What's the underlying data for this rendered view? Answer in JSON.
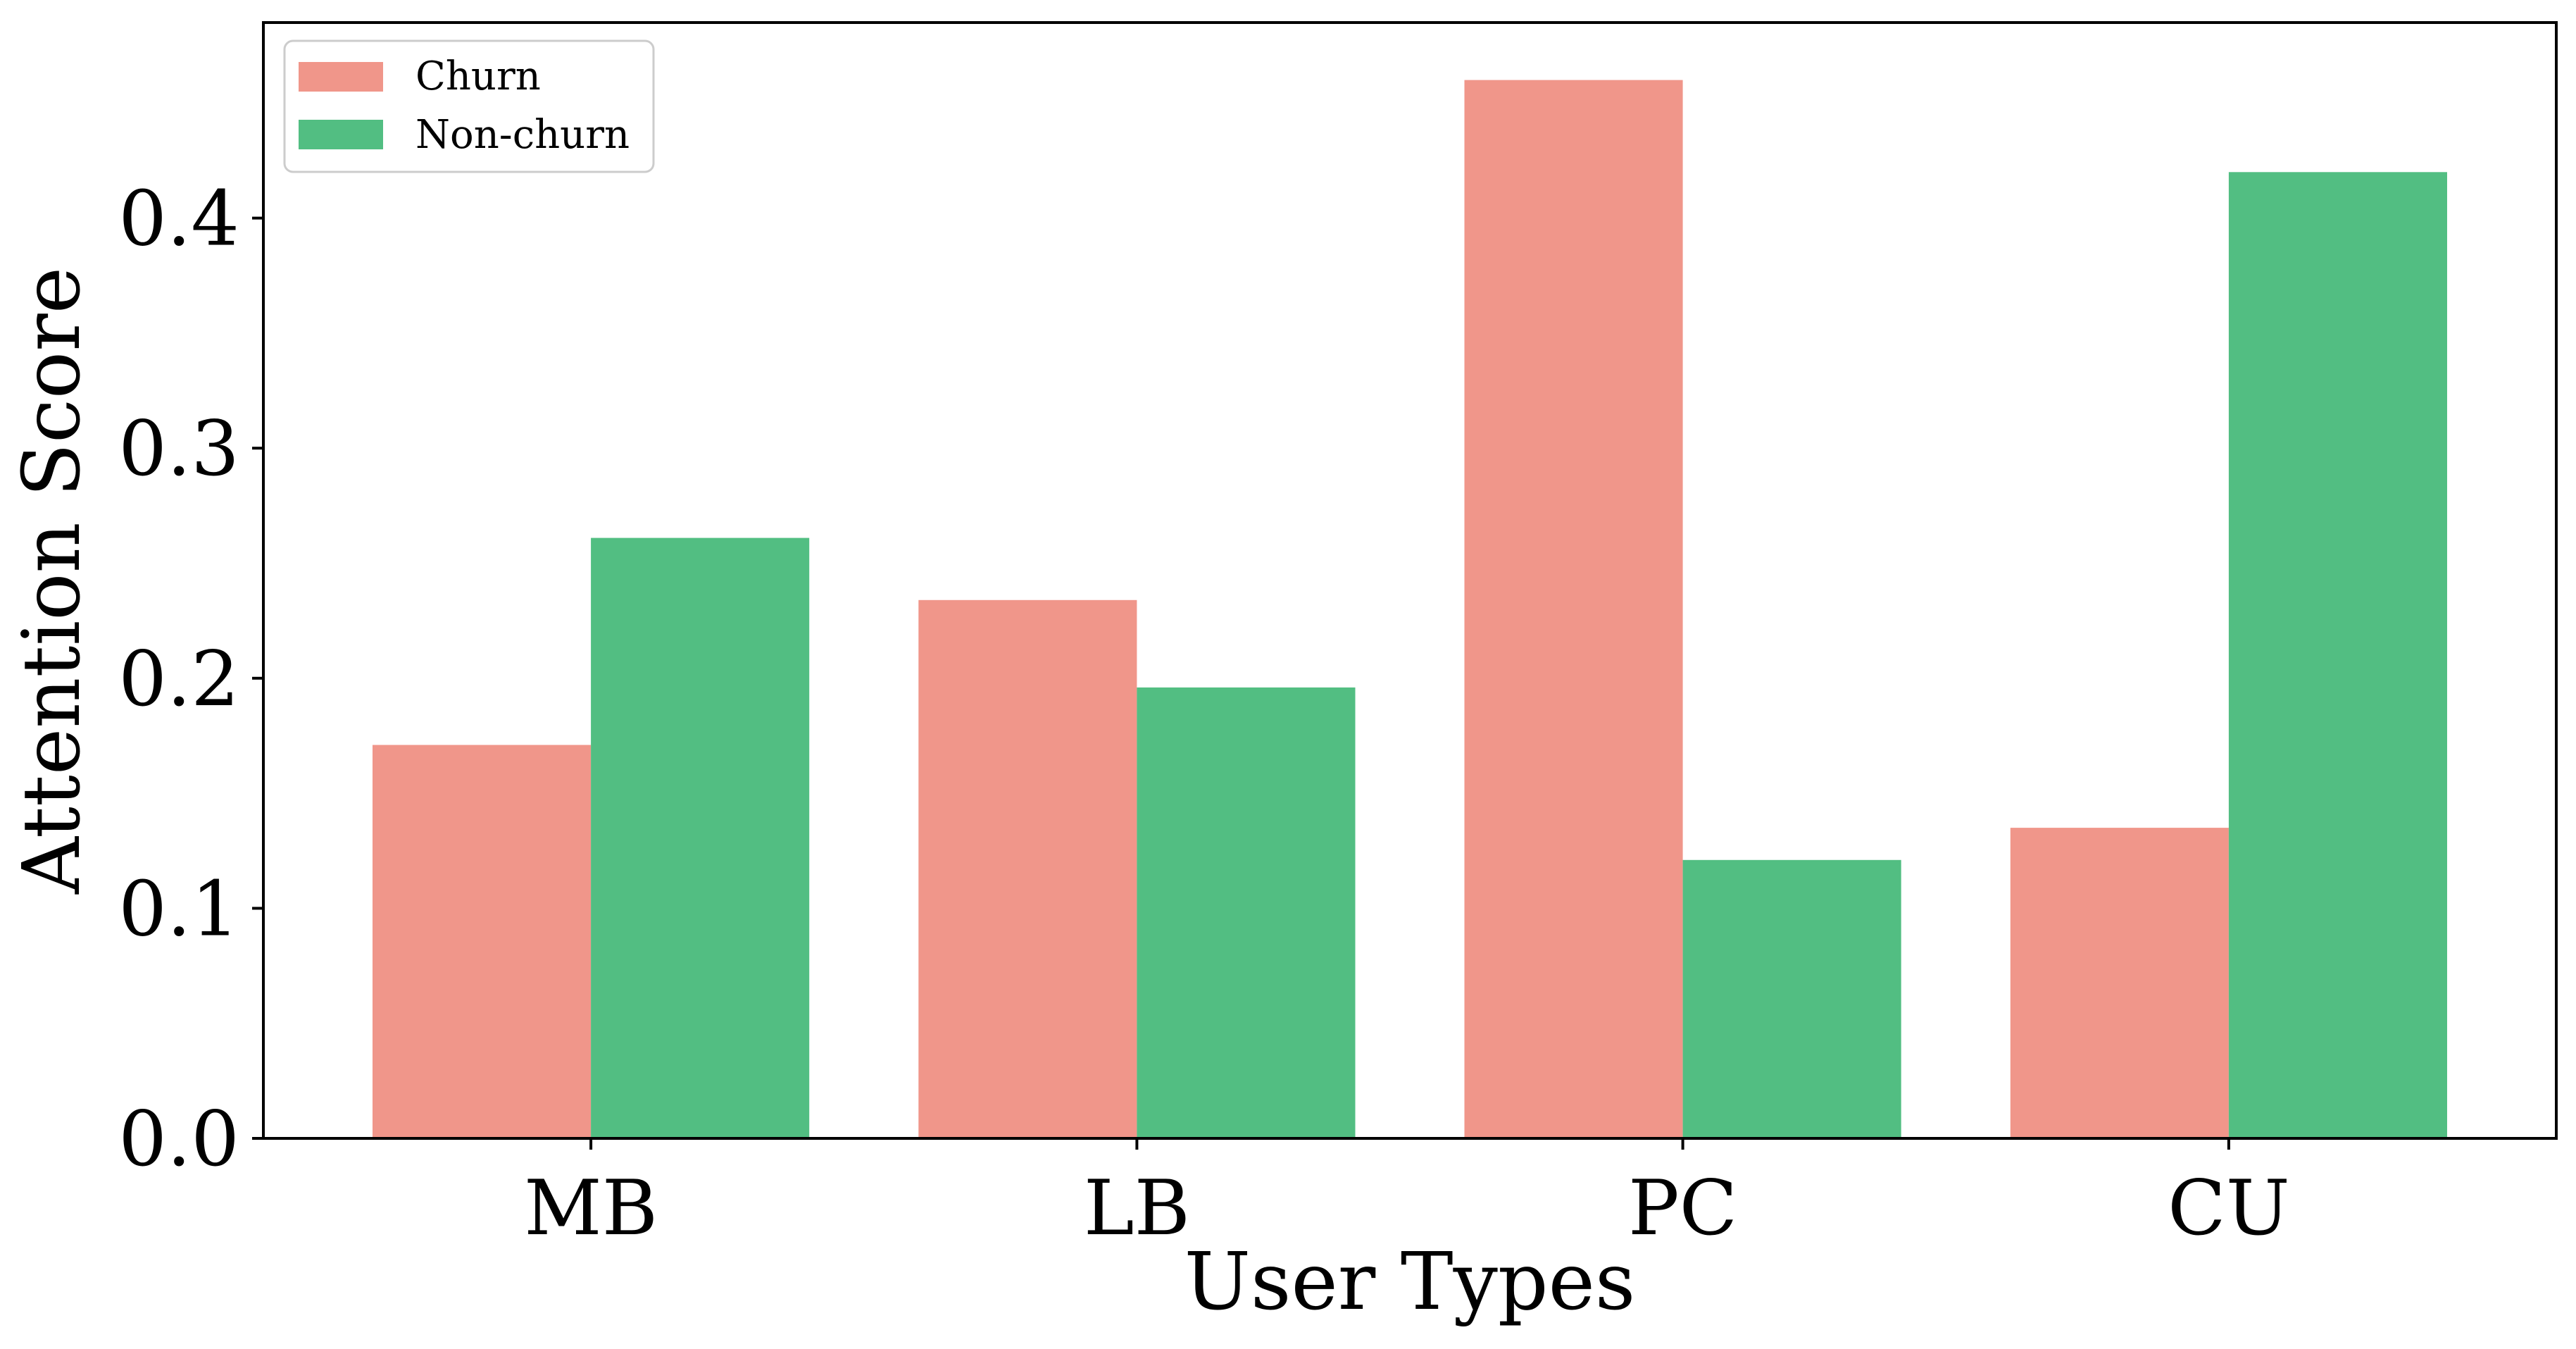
{
  "chart_data": {
    "type": "bar",
    "categories": [
      "MB",
      "LB",
      "PC",
      "CU"
    ],
    "series": [
      {
        "name": "Churn",
        "color": "#F0968A",
        "values": [
          0.171,
          0.234,
          0.46,
          0.135
        ]
      },
      {
        "name": "Non-churn",
        "color": "#52BE82",
        "values": [
          0.261,
          0.196,
          0.121,
          0.42
        ]
      }
    ],
    "xlabel": "User Types",
    "ylabel": "Attention Score",
    "ylim": [
      0,
      0.485
    ],
    "yticks": [
      "0.0",
      "0.1",
      "0.2",
      "0.3",
      "0.4"
    ],
    "grid": false,
    "legend_position": "upper left"
  }
}
